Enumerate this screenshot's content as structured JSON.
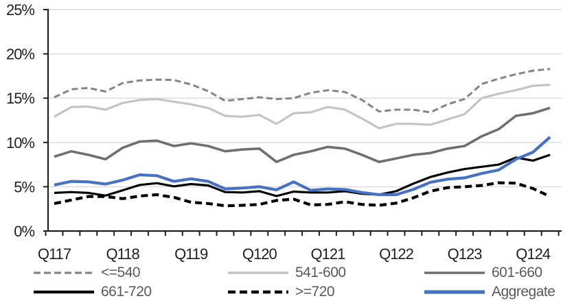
{
  "chart_data": {
    "type": "line",
    "title": "",
    "xlabel": "",
    "ylabel": "",
    "ylim": [
      0,
      25
    ],
    "y_axis": {
      "tick_step": 5,
      "tick_labels": [
        "0%",
        "5%",
        "10%",
        "15%",
        "20%",
        "25%"
      ],
      "tick_values": [
        0,
        5,
        10,
        15,
        20,
        25
      ]
    },
    "x_axis": {
      "tick_labels": [
        "Q117",
        "Q118",
        "Q119",
        "Q120",
        "Q121",
        "Q122",
        "Q123",
        "Q124"
      ],
      "label_every": 4
    },
    "grid": "horizontal",
    "grid_color": "#d9d9d9",
    "axis_color": "#1f1f1f",
    "legend_position": "bottom",
    "categories": [
      "Q117",
      "Q217",
      "Q317",
      "Q417",
      "Q118",
      "Q218",
      "Q318",
      "Q418",
      "Q119",
      "Q219",
      "Q319",
      "Q419",
      "Q120",
      "Q220",
      "Q320",
      "Q420",
      "Q121",
      "Q221",
      "Q321",
      "Q421",
      "Q122",
      "Q222",
      "Q322",
      "Q422",
      "Q123",
      "Q223",
      "Q323",
      "Q423",
      "Q124",
      "Q224"
    ],
    "series": [
      {
        "name": "<=540",
        "color": "#848484",
        "dash": "9,5",
        "width": 3,
        "values": [
          15.1,
          16.0,
          16.15,
          15.75,
          16.7,
          17.0,
          17.1,
          17.05,
          16.55,
          15.8,
          14.7,
          14.9,
          15.1,
          14.9,
          15.0,
          15.6,
          15.9,
          15.7,
          14.8,
          13.5,
          13.7,
          13.7,
          13.4,
          14.3,
          14.9,
          16.6,
          17.2,
          17.7,
          18.1,
          18.3
        ]
      },
      {
        "name": "541-600",
        "color": "#c4c4c4",
        "dash": null,
        "width": 3.2,
        "values": [
          12.9,
          14.0,
          14.05,
          13.7,
          14.45,
          14.8,
          14.9,
          14.6,
          14.3,
          13.9,
          13.0,
          12.9,
          13.1,
          12.1,
          13.3,
          13.4,
          14.0,
          13.7,
          12.7,
          11.6,
          12.1,
          12.1,
          12.0,
          12.6,
          13.2,
          15.0,
          15.5,
          15.9,
          16.4,
          16.5
        ]
      },
      {
        "name": "601-660",
        "color": "#6f6f6f",
        "dash": null,
        "width": 3.6,
        "values": [
          8.4,
          9.0,
          8.6,
          8.1,
          9.4,
          10.1,
          10.2,
          9.6,
          9.9,
          9.6,
          9.0,
          9.2,
          9.3,
          7.8,
          8.6,
          9.0,
          9.5,
          9.3,
          8.6,
          7.8,
          8.2,
          8.6,
          8.8,
          9.3,
          9.6,
          10.7,
          11.5,
          13.0,
          13.3,
          13.9
        ]
      },
      {
        "name": "661-720",
        "color": "#000000",
        "dash": null,
        "width": 3.2,
        "values": [
          4.3,
          4.4,
          4.3,
          4.0,
          4.6,
          5.2,
          5.4,
          5.05,
          5.3,
          5.15,
          4.4,
          4.35,
          4.5,
          3.95,
          4.45,
          4.35,
          4.35,
          4.5,
          4.2,
          4.1,
          4.5,
          5.35,
          6.1,
          6.6,
          7.0,
          7.25,
          7.5,
          8.3,
          7.95,
          8.6
        ]
      },
      {
        "name": ">=720",
        "color": "#000000",
        "dash": "10,6",
        "width": 4.2,
        "values": [
          3.1,
          3.5,
          3.9,
          3.9,
          3.65,
          3.95,
          4.1,
          3.8,
          3.25,
          3.1,
          2.85,
          2.9,
          3.0,
          3.45,
          3.6,
          2.95,
          3.0,
          3.3,
          3.0,
          2.9,
          3.15,
          3.75,
          4.5,
          4.9,
          5.0,
          5.15,
          5.45,
          5.4,
          4.8,
          3.9
        ]
      },
      {
        "name": "Aggregate",
        "color": "#4472c4",
        "dash": null,
        "width": 4.2,
        "values": [
          5.2,
          5.6,
          5.55,
          5.3,
          5.75,
          6.35,
          6.25,
          5.6,
          5.9,
          5.6,
          4.75,
          4.85,
          5.0,
          4.65,
          5.55,
          4.6,
          4.75,
          4.7,
          4.35,
          4.1,
          4.1,
          4.7,
          5.5,
          5.85,
          6.0,
          6.5,
          6.9,
          8.1,
          8.9,
          10.6
        ]
      }
    ]
  },
  "legend": {
    "text_color": "#595959",
    "swatch_styles": [
      {
        "series": 0,
        "width": 3.2,
        "dash": "10,5"
      },
      {
        "series": 1,
        "width": 3.6,
        "dash": null
      },
      {
        "series": 2,
        "width": 3.6,
        "dash": null
      },
      {
        "series": 3,
        "width": 4.2,
        "dash": null
      },
      {
        "series": 4,
        "width": 4.6,
        "dash": "11,6"
      },
      {
        "series": 5,
        "width": 5.2,
        "dash": null
      }
    ]
  }
}
